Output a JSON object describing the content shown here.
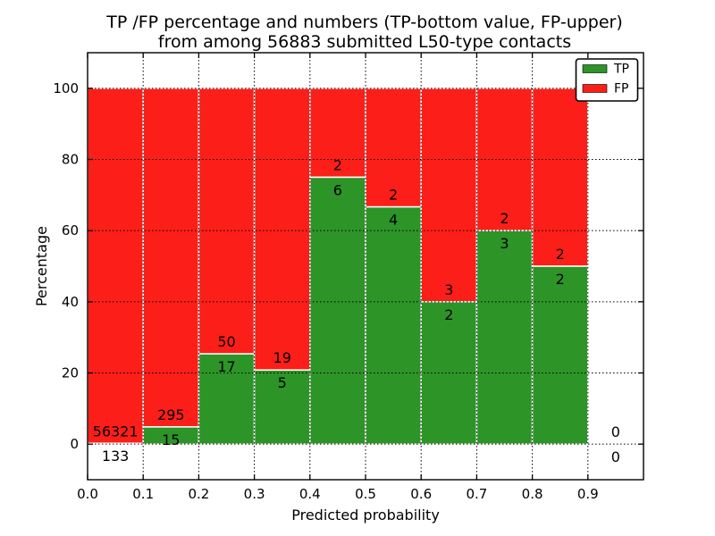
{
  "figure": {
    "title_line1": "TP /FP percentage and numbers (TP-bottom value, FP-upper)",
    "title_line2": "from among 56883 submitted L50-type contacts"
  },
  "chart_data": {
    "type": "bar",
    "stacked": true,
    "title": "TP /FP percentage and numbers (TP-bottom value, FP-upper)\nfrom among 56883 submitted L50-type contacts",
    "xlabel": "Predicted probability",
    "ylabel": "Percentage",
    "total_submitted_contacts": 56883,
    "contact_type": "L50",
    "xlim": [
      0.0,
      1.0
    ],
    "ylim": [
      -10,
      110
    ],
    "grid": "dotted black, drawn above bars",
    "legend_position": "upper right",
    "bin_width": 0.1,
    "bins": [
      {
        "range": [
          0.0,
          0.1
        ],
        "tp": 133,
        "fp": 56321,
        "tp_percent": 0.24
      },
      {
        "range": [
          0.1,
          0.2
        ],
        "tp": 15,
        "fp": 295,
        "tp_percent": 4.84
      },
      {
        "range": [
          0.2,
          0.3
        ],
        "tp": 17,
        "fp": 50,
        "tp_percent": 25.37
      },
      {
        "range": [
          0.3,
          0.4
        ],
        "tp": 5,
        "fp": 19,
        "tp_percent": 20.83
      },
      {
        "range": [
          0.4,
          0.5
        ],
        "tp": 6,
        "fp": 2,
        "tp_percent": 75.0
      },
      {
        "range": [
          0.5,
          0.6
        ],
        "tp": 4,
        "fp": 2,
        "tp_percent": 66.67
      },
      {
        "range": [
          0.6,
          0.7
        ],
        "tp": 2,
        "fp": 3,
        "tp_percent": 40.0
      },
      {
        "range": [
          0.7,
          0.8
        ],
        "tp": 3,
        "fp": 2,
        "tp_percent": 60.0
      },
      {
        "range": [
          0.8,
          0.9
        ],
        "tp": 2,
        "fp": 2,
        "tp_percent": 50.0
      },
      {
        "range": [
          0.9,
          1.0
        ],
        "tp": 0,
        "fp": 0,
        "tp_percent": null
      }
    ],
    "series": [
      {
        "name": "TP",
        "color": "#2d9428",
        "counts": [
          133,
          15,
          17,
          5,
          6,
          4,
          2,
          3,
          2,
          0
        ]
      },
      {
        "name": "FP",
        "color": "#fc1e19",
        "counts": [
          56321,
          295,
          50,
          19,
          2,
          2,
          3,
          2,
          2,
          0
        ]
      }
    ],
    "xticks": [
      0.0,
      0.1,
      0.2,
      0.3,
      0.4,
      0.5,
      0.6,
      0.7,
      0.8,
      0.9
    ],
    "xtick_labels": [
      "0.0",
      "0.1",
      "0.2",
      "0.3",
      "0.4",
      "0.5",
      "0.6",
      "0.7",
      "0.8",
      "0.9"
    ],
    "yticks": [
      0,
      20,
      40,
      60,
      80,
      100
    ],
    "ytick_labels": [
      "0",
      "20",
      "40",
      "60",
      "80",
      "100"
    ],
    "legend": {
      "entries": [
        {
          "label": "TP",
          "color": "#2d9428"
        },
        {
          "label": "FP",
          "color": "#fc1e19"
        }
      ]
    },
    "colors": {
      "tp": "#2d9428",
      "fp": "#fc1e19",
      "bar_edge": "#ffffff",
      "grid": "#000000",
      "spine": "#000000",
      "background": "#ffffff"
    }
  }
}
